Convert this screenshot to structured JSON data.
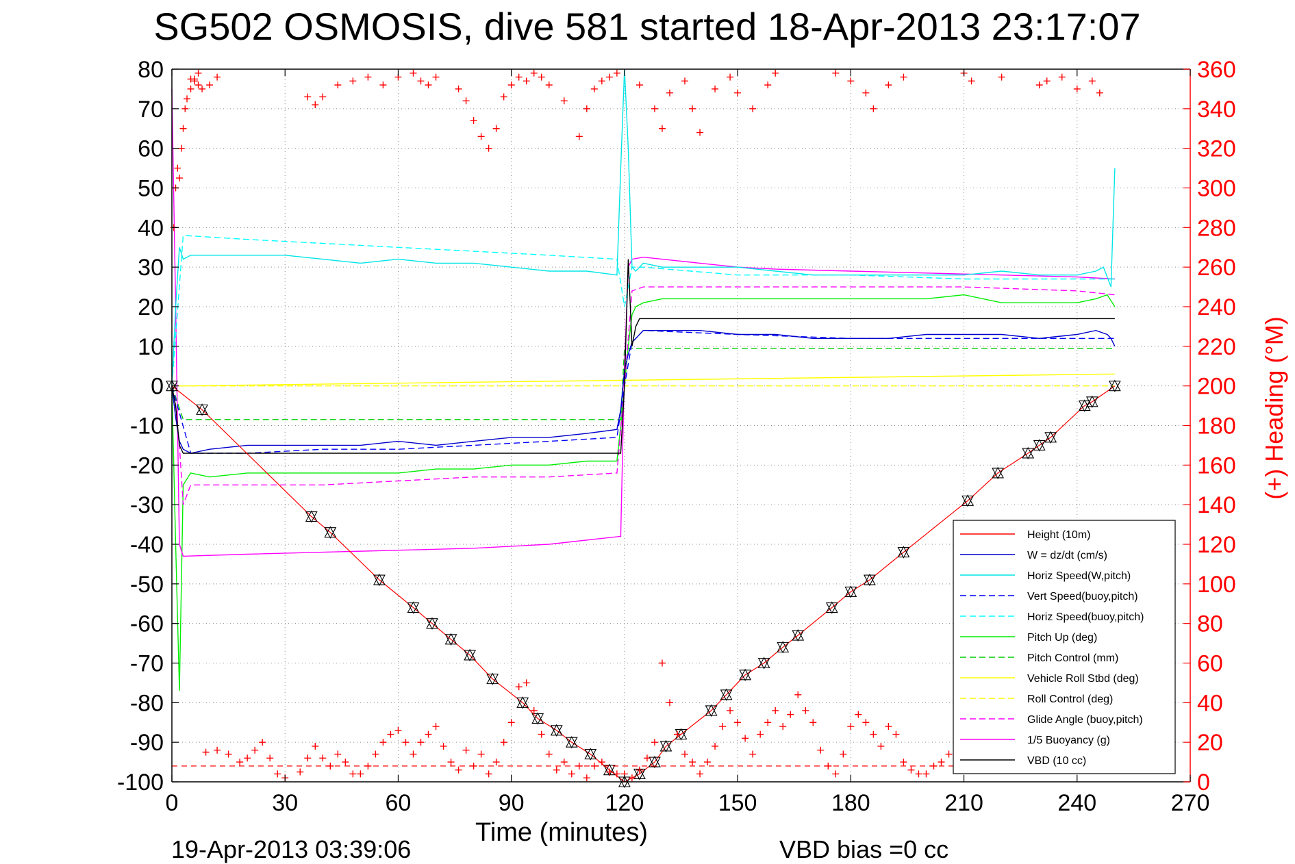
{
  "chart_data": {
    "type": "line",
    "title": "SG502 OSMOSIS, dive 581 started 18-Apr-2013 23:17:07",
    "xlabel": "Time (minutes)",
    "ylabel_right": "(+) Heading (°M)",
    "xlim": [
      0,
      270
    ],
    "ylim_left": [
      -100,
      80
    ],
    "ylim_right": [
      0,
      360
    ],
    "x_ticks": [
      0,
      30,
      60,
      90,
      120,
      150,
      180,
      210,
      240,
      270
    ],
    "y_ticks_left": [
      80,
      70,
      60,
      50,
      40,
      30,
      20,
      10,
      0,
      -10,
      -20,
      -30,
      -40,
      -50,
      -60,
      -70,
      -80,
      -90,
      -100
    ],
    "y_ticks_right": [
      360,
      340,
      320,
      300,
      280,
      260,
      240,
      220,
      200,
      180,
      160,
      140,
      120,
      100,
      80,
      60,
      40,
      20,
      0
    ],
    "grid": true,
    "legend_position": "bottom-right",
    "footer_left": "19-Apr-2013 03:39:06",
    "footer_right": "VBD bias =0 cc",
    "colors": {
      "height": "#ff0000",
      "w": "#0000cc",
      "horiz_w": "#00e5e5",
      "vert_buoy": "#0000ff",
      "horiz_buoy": "#00ffff",
      "pitch_up": "#00ee00",
      "pitch_control": "#00cc00",
      "roll": "#ffff00",
      "roll_control": "#ffff00",
      "glide": "#ff00ff",
      "buoyancy": "#ff00ff",
      "vbd": "#000000",
      "heading": "#ff0000"
    },
    "series": [
      {
        "key": "height",
        "name": "Height (10m)",
        "style": "solid",
        "x": [
          0,
          8,
          37,
          42,
          55,
          64,
          69,
          74,
          79,
          85,
          93,
          97,
          102,
          106,
          111,
          116,
          120,
          124,
          128,
          131,
          135,
          143,
          147,
          152,
          157,
          162,
          166,
          175,
          180,
          185,
          194,
          211,
          219,
          227,
          230,
          233,
          242,
          244,
          250
        ],
        "y": [
          0,
          -6,
          -33,
          -37,
          -49,
          -56,
          -60,
          -64,
          -68,
          -74,
          -80,
          -84,
          -87,
          -90,
          -93,
          -97,
          -100,
          -98,
          -95,
          -91,
          -88,
          -82,
          -78,
          -73,
          -70,
          -66,
          -63,
          -56,
          -52,
          -49,
          -42,
          -29,
          -22,
          -17,
          -15,
          -13,
          -5,
          -4,
          0
        ]
      },
      {
        "key": "w",
        "name": "W = dz/dt (cm/s)",
        "style": "solid",
        "x": [
          0,
          1,
          2,
          3,
          5,
          10,
          20,
          30,
          40,
          50,
          60,
          70,
          80,
          90,
          100,
          110,
          118,
          119,
          120,
          121,
          122,
          123,
          124,
          125,
          130,
          140,
          150,
          160,
          170,
          180,
          190,
          200,
          210,
          220,
          230,
          240,
          245,
          248,
          249,
          250
        ],
        "y": [
          0,
          -8,
          -14,
          -16,
          -17,
          -16,
          -15,
          -15,
          -15,
          -15,
          -14,
          -15,
          -14,
          -13,
          -13,
          -12,
          -11,
          -6,
          4,
          8,
          11,
          12,
          13,
          14,
          14,
          14,
          13,
          13,
          12,
          12,
          12,
          13,
          13,
          13,
          12,
          13,
          14,
          13,
          12,
          10
        ]
      },
      {
        "key": "horiz_w",
        "name": "Horiz Speed(W,pitch)",
        "style": "solid",
        "x": [
          0,
          1,
          2,
          3,
          5,
          10,
          20,
          30,
          40,
          50,
          60,
          70,
          80,
          90,
          100,
          110,
          118,
          119,
          120,
          121,
          122,
          123,
          124,
          125,
          130,
          140,
          150,
          160,
          170,
          180,
          190,
          200,
          210,
          220,
          230,
          240,
          245,
          247,
          249,
          250
        ],
        "y": [
          0,
          20,
          35,
          32,
          33,
          33,
          33,
          33,
          32,
          31,
          32,
          31,
          31,
          30,
          29,
          29,
          28,
          55,
          80,
          60,
          30,
          29,
          30,
          31,
          30,
          30,
          30,
          29,
          28,
          28,
          28,
          28,
          28,
          29,
          28,
          28,
          29,
          30,
          25,
          55
        ]
      },
      {
        "key": "vert_buoy",
        "name": "Vert Speed(buoy,pitch)",
        "style": "dashed",
        "x": [
          0,
          5,
          20,
          40,
          60,
          80,
          100,
          118,
          120,
          122,
          125,
          150,
          180,
          210,
          240,
          250
        ],
        "y": [
          0,
          -17,
          -17,
          -16,
          -16,
          -15,
          -14,
          -13,
          0,
          11,
          14,
          13,
          12,
          12,
          12,
          12
        ]
      },
      {
        "key": "horiz_buoy",
        "name": "Horiz Speed(buoy,pitch)",
        "style": "dashed",
        "x": [
          0,
          3,
          20,
          40,
          60,
          80,
          100,
          118,
          120,
          122,
          125,
          150,
          180,
          210,
          240,
          250
        ],
        "y": [
          0,
          38,
          37,
          36,
          35,
          34,
          33,
          32,
          20,
          30,
          30,
          28,
          28,
          27,
          27,
          27
        ]
      },
      {
        "key": "pitch_up",
        "name": "Pitch Up (deg)",
        "style": "solid",
        "x": [
          0,
          1,
          2,
          3,
          5,
          10,
          20,
          30,
          40,
          50,
          60,
          70,
          80,
          90,
          100,
          110,
          118,
          119,
          120,
          121,
          122,
          123,
          125,
          130,
          140,
          150,
          160,
          170,
          180,
          190,
          200,
          210,
          220,
          230,
          240,
          245,
          248,
          250
        ],
        "y": [
          0,
          -40,
          -77,
          -25,
          -22,
          -23,
          -22,
          -22,
          -22,
          -22,
          -22,
          -21,
          -21,
          -20,
          -20,
          -19,
          -19,
          -10,
          0,
          10,
          18,
          20,
          21,
          22,
          22,
          22,
          22,
          22,
          22,
          22,
          22,
          23,
          21,
          21,
          21,
          22,
          23,
          20
        ]
      },
      {
        "key": "pitch_control",
        "name": "Pitch Control (mm)",
        "style": "dashed",
        "x": [
          0,
          3,
          119,
          120,
          250
        ],
        "y": [
          0,
          -8.5,
          -8.5,
          9.5,
          9.5
        ]
      },
      {
        "key": "roll",
        "name": "Vehicle Roll Stbd (deg)",
        "style": "solid",
        "x": [
          0,
          3,
          250
        ],
        "y": [
          0,
          0,
          3
        ]
      },
      {
        "key": "roll_control",
        "name": "Roll Control (deg)",
        "style": "dashed",
        "x": [
          0,
          3,
          250
        ],
        "y": [
          0,
          0,
          0
        ]
      },
      {
        "key": "glide",
        "name": "Glide Angle (buoy,pitch)",
        "style": "dashed",
        "x": [
          0,
          2,
          3,
          5,
          20,
          40,
          60,
          80,
          100,
          118,
          120,
          122,
          125,
          150,
          180,
          210,
          240,
          250
        ],
        "y": [
          0,
          -15,
          -30,
          -25,
          -25,
          -25,
          -24,
          -23,
          -23,
          -22,
          0,
          24,
          25,
          25,
          25,
          25,
          24,
          23
        ]
      },
      {
        "key": "buoyancy",
        "name": "1/5 Buoyancy (g)",
        "style": "solid",
        "x": [
          0,
          1,
          2,
          3,
          20,
          40,
          60,
          80,
          100,
          119,
          120,
          121,
          122,
          125,
          130,
          140,
          150,
          160,
          180,
          200,
          220,
          240,
          250
        ],
        "y": [
          75,
          20,
          -40,
          -43,
          -42.5,
          -42,
          -41.5,
          -41,
          -40,
          -38,
          5,
          30,
          32,
          32.5,
          32,
          31,
          30,
          29.5,
          29,
          28.5,
          28,
          27.5,
          27
        ]
      },
      {
        "key": "vbd",
        "name": "VBD (10 cc)",
        "style": "solid",
        "x": [
          0,
          1,
          2,
          3,
          119,
          120,
          121,
          122,
          123,
          124,
          250
        ],
        "y": [
          0,
          -5,
          -15,
          -17,
          -17,
          0,
          32,
          10,
          15,
          17,
          17
        ]
      }
    ],
    "heading_series": {
      "name": "Heading",
      "axis": "right",
      "marker": "+",
      "x": [
        0.5,
        1,
        1.5,
        2,
        2.5,
        3,
        3.5,
        4,
        5,
        6,
        7,
        9,
        12,
        15,
        18,
        20,
        22,
        24,
        26,
        28,
        30,
        34,
        36,
        38,
        40,
        42,
        44,
        46,
        48,
        50,
        52,
        54,
        56,
        58,
        60,
        62,
        64,
        66,
        68,
        70,
        72,
        74,
        76,
        78,
        80,
        82,
        84,
        86,
        88,
        90,
        92,
        94,
        96,
        98,
        100,
        102,
        104,
        106,
        108,
        110,
        112,
        114,
        116,
        118,
        120,
        122,
        124,
        126,
        128,
        130,
        132,
        134,
        136,
        138,
        140,
        142,
        144,
        146,
        148,
        150,
        152,
        154,
        156,
        158,
        160,
        162,
        164,
        166,
        168,
        170,
        172,
        174,
        176,
        178,
        180,
        182,
        184,
        186,
        188,
        190,
        192,
        194,
        196,
        198,
        200,
        202,
        204,
        206,
        208,
        210,
        212,
        214,
        216,
        218,
        220,
        222,
        224,
        226,
        228,
        230,
        232,
        234,
        236,
        238,
        240,
        242,
        244
      ],
      "y": [
        280,
        300,
        310,
        305,
        320,
        330,
        340,
        345,
        350,
        355,
        358,
        15,
        16,
        14,
        10,
        12,
        16,
        20,
        12,
        4,
        2,
        5,
        12,
        18,
        12,
        8,
        14,
        10,
        4,
        4,
        8,
        14,
        20,
        24,
        26,
        20,
        14,
        20,
        24,
        28,
        18,
        10,
        6,
        16,
        8,
        14,
        4,
        10,
        20,
        30,
        48,
        50,
        36,
        24,
        14,
        6,
        10,
        4,
        8,
        2,
        8,
        10,
        5,
        4,
        4,
        2,
        6,
        12,
        20,
        60,
        40,
        24,
        14,
        10,
        4,
        10,
        18,
        28,
        36,
        30,
        22,
        14,
        24,
        30,
        36,
        28,
        34,
        44,
        36,
        30,
        16,
        8,
        4,
        14,
        28,
        34,
        30,
        24,
        18,
        28,
        24,
        10,
        6,
        4,
        4,
        8,
        10,
        14,
        18,
        20,
        14,
        24,
        20,
        32,
        10,
        36,
        34,
        28,
        32,
        24,
        30,
        26,
        32,
        22,
        28,
        34,
        30
      ]
    },
    "heading_top_series": {
      "name": "Heading",
      "axis": "right",
      "marker": "+",
      "x": [
        5,
        6,
        7,
        8,
        10,
        12,
        36,
        38,
        40,
        44,
        48,
        52,
        56,
        60,
        64,
        66,
        68,
        70,
        76,
        78,
        80,
        82,
        84,
        86,
        88,
        90,
        92,
        94,
        96,
        98,
        100,
        104,
        108,
        110,
        112,
        114,
        116,
        118,
        124,
        128,
        130,
        132,
        136,
        138,
        140,
        144,
        148,
        150,
        154,
        158,
        160,
        176,
        180,
        184,
        186,
        190,
        194,
        210,
        212,
        220,
        230,
        232,
        236,
        240,
        244,
        246
      ],
      "y": [
        355,
        354,
        352,
        350,
        352,
        356,
        346,
        342,
        346,
        352,
        354,
        356,
        352,
        356,
        358,
        354,
        352,
        356,
        350,
        344,
        334,
        326,
        320,
        330,
        346,
        352,
        356,
        354,
        358,
        356,
        352,
        344,
        326,
        340,
        350,
        354,
        356,
        358,
        352,
        340,
        330,
        348,
        354,
        340,
        328,
        350,
        356,
        348,
        340,
        352,
        358,
        358,
        354,
        348,
        340,
        352,
        356,
        358,
        354,
        356,
        352,
        354,
        356,
        350,
        354,
        348
      ]
    },
    "legend_entries": [
      {
        "key": "height",
        "label": "Height (10m)"
      },
      {
        "key": "w",
        "label": "W = dz/dt (cm/s)"
      },
      {
        "key": "horiz_w",
        "label": "Horiz Speed(W,pitch)"
      },
      {
        "key": "vert_buoy",
        "label": "Vert Speed(buoy,pitch)"
      },
      {
        "key": "horiz_buoy",
        "label": "Horiz Speed(buoy,pitch)"
      },
      {
        "key": "pitch_up",
        "label": "Pitch Up (deg)"
      },
      {
        "key": "pitch_control",
        "label": "Pitch Control (mm)"
      },
      {
        "key": "roll",
        "label": "Vehicle Roll Stbd (deg)"
      },
      {
        "key": "roll_control",
        "label": "Roll Control (deg)"
      },
      {
        "key": "glide",
        "label": "Glide Angle (buoy,pitch)"
      },
      {
        "key": "buoyancy",
        "label": "1/5 Buoyancy (g)"
      },
      {
        "key": "vbd",
        "label": "VBD (10 cc)"
      }
    ]
  }
}
